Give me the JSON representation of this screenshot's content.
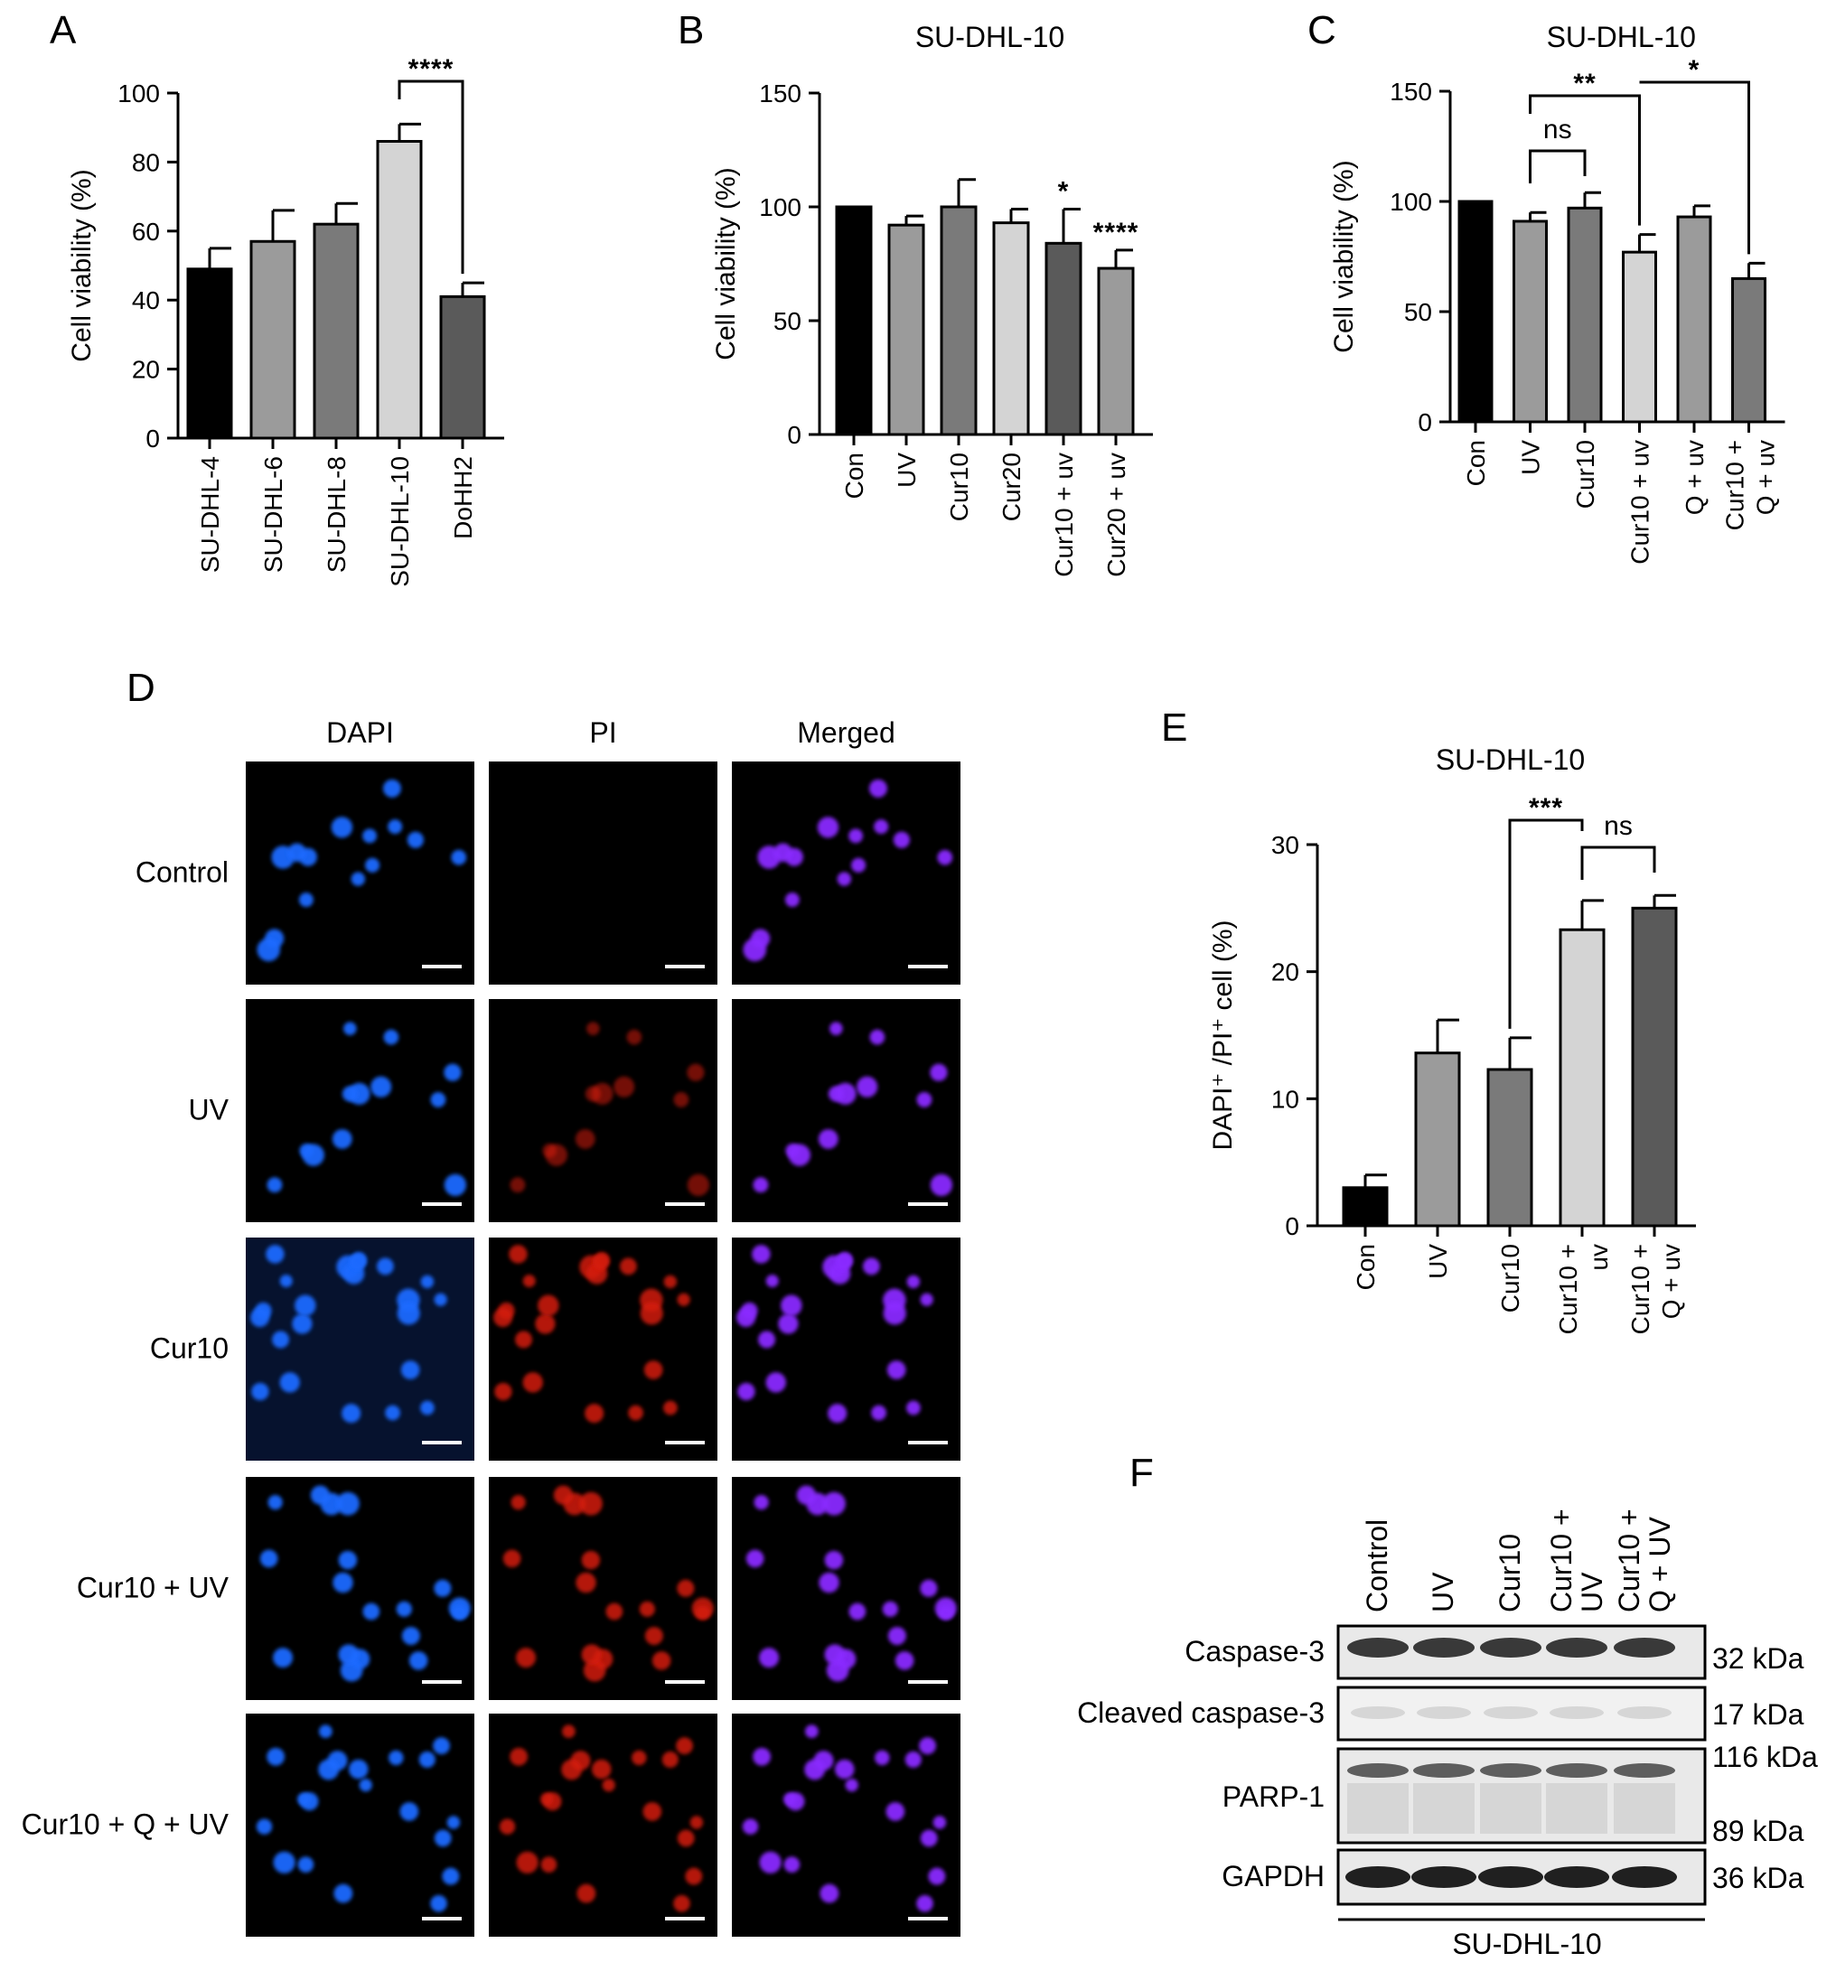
{
  "panels": {
    "A": "A",
    "B": "B",
    "C": "C",
    "D": "D",
    "E": "E",
    "F": "F"
  },
  "chart_data": [
    {
      "id": "A",
      "type": "bar",
      "title": "",
      "ylabel": "Cell viability (%)",
      "ylim": [
        0,
        100
      ],
      "yticks": [
        0,
        20,
        40,
        60,
        80,
        100
      ],
      "categories": [
        "SU-DHL-4",
        "SU-DHL-6",
        "SU-DHL-8",
        "SU-DHL-10",
        "DoHH2"
      ],
      "values": [
        49,
        57,
        62,
        86,
        41
      ],
      "errors": [
        6,
        9,
        6,
        5,
        4
      ],
      "colors": [
        "#000000",
        "#9b9b9b",
        "#7a7a7a",
        "#d4d4d4",
        "#5a5a5a"
      ],
      "significance": [
        {
          "from": 3,
          "to": 4,
          "label": "****"
        }
      ]
    },
    {
      "id": "B",
      "type": "bar",
      "title": "SU-DHL-10",
      "ylabel": "Cell viability (%)",
      "ylim": [
        0,
        150
      ],
      "yticks": [
        0,
        50,
        100,
        150
      ],
      "categories": [
        "Con",
        "UV",
        "Cur10",
        "Cur20",
        "Cur10 + uv",
        "Cur20 + uv"
      ],
      "values": [
        100,
        92,
        100,
        93,
        84,
        73
      ],
      "errors": [
        0,
        4,
        12,
        6,
        15,
        8
      ],
      "colors": [
        "#000000",
        "#9b9b9b",
        "#7a7a7a",
        "#d4d4d4",
        "#5a5a5a",
        "#9b9b9b"
      ],
      "annotations": [
        {
          "bar": 4,
          "label": "*"
        },
        {
          "bar": 5,
          "label": "****"
        }
      ]
    },
    {
      "id": "C",
      "type": "bar",
      "title": "SU-DHL-10",
      "ylabel": "Cell viability (%)",
      "ylim": [
        0,
        150
      ],
      "yticks": [
        0,
        50,
        100,
        150
      ],
      "categories": [
        [
          "Con"
        ],
        [
          "UV"
        ],
        [
          "Cur10"
        ],
        [
          "Cur10 + uv"
        ],
        [
          "Q + uv"
        ],
        [
          "Cur10 +",
          "Q + uv"
        ]
      ],
      "values": [
        100,
        91,
        97,
        77,
        93,
        65
      ],
      "errors": [
        0,
        4,
        7,
        8,
        5,
        7
      ],
      "colors": [
        "#000000",
        "#9b9b9b",
        "#7a7a7a",
        "#d4d4d4",
        "#9b9b9b",
        "#7a7a7a"
      ],
      "significance": [
        {
          "from": 1,
          "to": 2,
          "label": "ns"
        },
        {
          "from": 1,
          "to": 3,
          "label": "**"
        },
        {
          "from": 3,
          "to": 5,
          "label": "*"
        }
      ]
    },
    {
      "id": "E",
      "type": "bar",
      "title": "SU-DHL-10",
      "ylabel": "DAPI⁺ /PI⁺ cell (%)",
      "ylim": [
        0,
        30
      ],
      "yticks": [
        0,
        10,
        20,
        30
      ],
      "categories": [
        [
          "Con"
        ],
        [
          "UV"
        ],
        [
          "Cur10"
        ],
        [
          "Cur10 +",
          "uv"
        ],
        [
          "Cur10 +",
          "Q + uv"
        ]
      ],
      "values": [
        3,
        13.6,
        12.3,
        23.3,
        25
      ],
      "errors": [
        1,
        2.6,
        2.5,
        2.3,
        1
      ],
      "colors": [
        "#000000",
        "#9b9b9b",
        "#7a7a7a",
        "#d4d4d4",
        "#5a5a5a"
      ],
      "significance": [
        {
          "from": 2,
          "to": 3,
          "label": "***"
        },
        {
          "from": 3,
          "to": 4,
          "label": "ns"
        }
      ]
    }
  ],
  "microscopy": {
    "columns": [
      "DAPI",
      "PI",
      "Merged"
    ],
    "rows": [
      "Control",
      "UV",
      "Cur10",
      "Cur10 + UV",
      "Cur10 + Q + UV"
    ],
    "channel_colors": {
      "DAPI": "#1e6bff",
      "PI": "#d41a10",
      "Merged": "#8a2cff"
    },
    "pi_intensity": [
      0.02,
      0.55,
      0.85,
      0.85,
      0.85
    ]
  },
  "western_blot": {
    "lanes": [
      [
        "Control"
      ],
      [
        "UV"
      ],
      [
        "Cur10"
      ],
      [
        "Cur10 +",
        "UV"
      ],
      [
        "Cur10 +",
        "Q + UV"
      ]
    ],
    "rows": [
      {
        "label": "Caspase-3",
        "markers": [
          "32 kDa"
        ]
      },
      {
        "label": "Cleaved caspase-3",
        "markers": [
          "17 kDa"
        ]
      },
      {
        "label": "PARP-1",
        "markers": [
          "116 kDa",
          "89 kDa"
        ]
      },
      {
        "label": "GAPDH",
        "markers": [
          "36 kDa"
        ]
      }
    ],
    "cell_line": "SU-DHL-10"
  }
}
